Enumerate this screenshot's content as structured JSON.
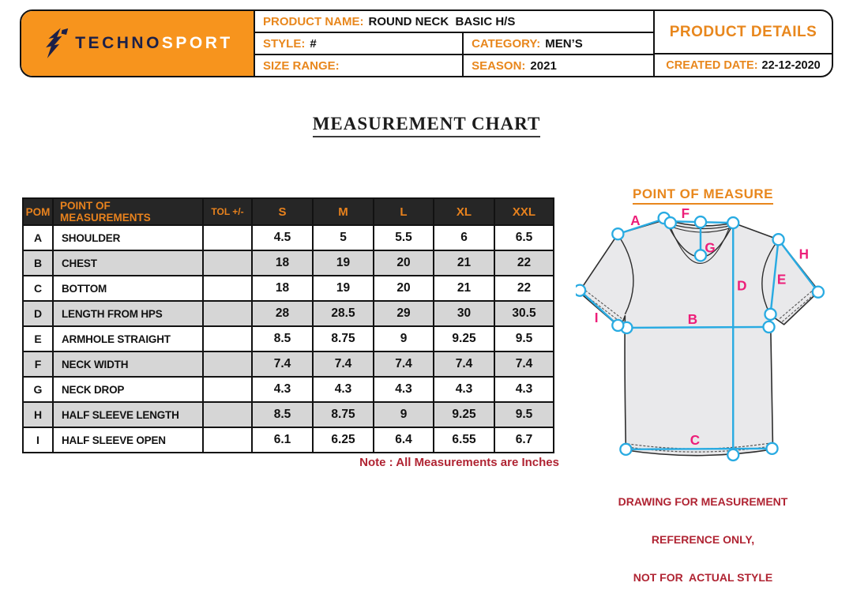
{
  "header": {
    "logo": {
      "icon": "bird-swoosh-icon",
      "brand_part1": "TECHNO",
      "brand_part2": "SPORT"
    },
    "product_name_label": "PRODUCT NAME:",
    "product_name_value": "ROUND NECK  BASIC H/S",
    "style_label": "STYLE:",
    "style_value": "#",
    "category_label": "CATEGORY:",
    "category_value": "MEN’S",
    "size_range_label": "SIZE RANGE:",
    "size_range_value": "",
    "season_label": "SEASON:",
    "season_value": "2021",
    "product_details_label": "PRODUCT DETAILS",
    "created_date_label": "CREATED DATE:",
    "created_date_value": "22-12-2020"
  },
  "title": "MEASUREMENT CHART",
  "measurement_table": {
    "columns": [
      "POM",
      "POINT OF MEASUREMENTS",
      "TOL +/-",
      "S",
      "M",
      "L",
      "XL",
      "XXL"
    ],
    "rows": [
      {
        "pom": "A",
        "name": "SHOULDER",
        "tol": "",
        "values": [
          "4.5",
          "5",
          "5.5",
          "6",
          "6.5"
        ]
      },
      {
        "pom": "B",
        "name": "CHEST",
        "tol": "",
        "values": [
          "18",
          "19",
          "20",
          "21",
          "22"
        ]
      },
      {
        "pom": "C",
        "name": "BOTTOM",
        "tol": "",
        "values": [
          "18",
          "19",
          "20",
          "21",
          "22"
        ]
      },
      {
        "pom": "D",
        "name": "LENGTH FROM HPS",
        "tol": "",
        "values": [
          "28",
          "28.5",
          "29",
          "30",
          "30.5"
        ]
      },
      {
        "pom": "E",
        "name": "ARMHOLE STRAIGHT",
        "tol": "",
        "values": [
          "8.5",
          "8.75",
          "9",
          "9.25",
          "9.5"
        ]
      },
      {
        "pom": "F",
        "name": "NECK WIDTH",
        "tol": "",
        "values": [
          "7.4",
          "7.4",
          "7.4",
          "7.4",
          "7.4"
        ]
      },
      {
        "pom": "G",
        "name": "NECK DROP",
        "tol": "",
        "values": [
          "4.3",
          "4.3",
          "4.3",
          "4.3",
          "4.3"
        ]
      },
      {
        "pom": "H",
        "name": "HALF SLEEVE LENGTH",
        "tol": "",
        "values": [
          "8.5",
          "8.75",
          "9",
          "9.25",
          "9.5"
        ]
      },
      {
        "pom": "I",
        "name": "HALF SLEEVE OPEN",
        "tol": "",
        "values": [
          "6.1",
          "6.25",
          "6.4",
          "6.55",
          "6.7"
        ]
      }
    ],
    "note": "Note : All Measurements are Inches"
  },
  "diagram": {
    "title": "POINT OF MEASURE",
    "labels": [
      "A",
      "B",
      "C",
      "D",
      "E",
      "F",
      "G",
      "H",
      "I"
    ],
    "warning_line1": "DRAWING FOR MEASUREMENT",
    "warning_line2": "REFERENCE ONLY,",
    "warning_line3": "NOT FOR  ACTUAL STYLE"
  },
  "colors": {
    "orange": "#F7941D",
    "orange_text": "#E8871D",
    "navy": "#1C2048",
    "header_dark": "#262626",
    "row_gray": "#D6D6D6",
    "cyan": "#29ABE2",
    "pink": "#ED1E79",
    "crimson": "#B02433"
  }
}
